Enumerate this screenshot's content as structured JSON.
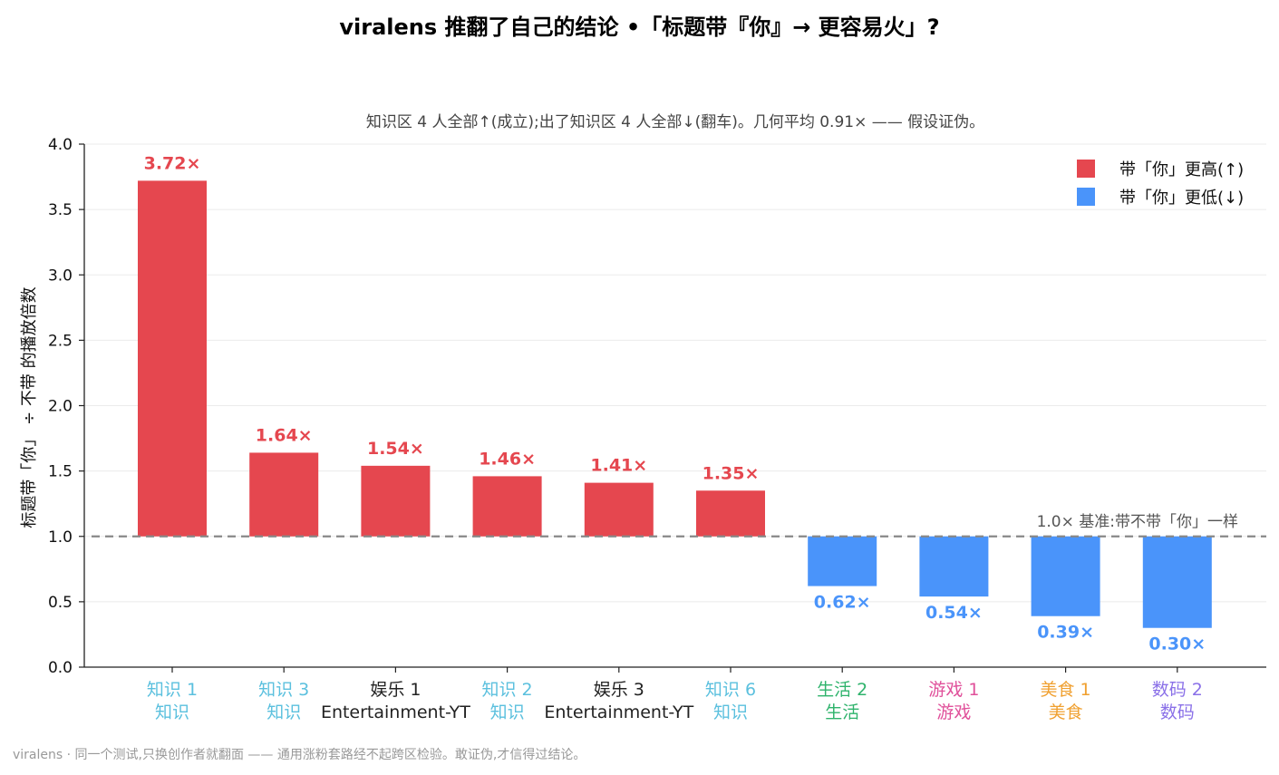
{
  "chart_data": {
    "type": "bar",
    "title": "viralens 推翻了自己的结论 •「标题带『你』→ 更容易火」?",
    "subtitle": "知识区 4 人全部↑(成立);出了知识区 4 人全部↓(翻车)。几何平均 0.91× —— 假设证伪。",
    "ylabel": "标题带「你」 ÷ 不带 的播放倍数",
    "ylim": [
      0,
      4.0
    ],
    "yticks": [
      "0.0",
      "0.5",
      "1.0",
      "1.5",
      "2.0",
      "2.5",
      "3.0",
      "3.5",
      "4.0"
    ],
    "baseline": 1.0,
    "baseline_label": "1.0× 基准:带不带「你」一样",
    "grid": "horizontal",
    "legend_position": "top-right",
    "legend": [
      {
        "label": "带「你」更高(↑)",
        "color": "#e5474f"
      },
      {
        "label": "带「你」更低(↓)",
        "color": "#4a94fa"
      }
    ],
    "categories": [
      {
        "name": "知识 1",
        "group": "知识",
        "name_color": "#5bc0de",
        "group_color": "#5bc0de"
      },
      {
        "name": "知识 3",
        "group": "知识",
        "name_color": "#5bc0de",
        "group_color": "#5bc0de"
      },
      {
        "name": "娱乐 1",
        "group": "Entertainment-YT",
        "name_color": "#222222",
        "group_color": "#222222"
      },
      {
        "name": "知识 2",
        "group": "知识",
        "name_color": "#5bc0de",
        "group_color": "#5bc0de"
      },
      {
        "name": "娱乐 3",
        "group": "Entertainment-YT",
        "name_color": "#222222",
        "group_color": "#222222"
      },
      {
        "name": "知识 6",
        "group": "知识",
        "name_color": "#5bc0de",
        "group_color": "#5bc0de"
      },
      {
        "name": "生活 2",
        "group": "生活",
        "name_color": "#2fb36c",
        "group_color": "#2fb36c"
      },
      {
        "name": "游戏 1",
        "group": "游戏",
        "name_color": "#e0509a",
        "group_color": "#e0509a"
      },
      {
        "name": "美食 1",
        "group": "美食",
        "name_color": "#f0a030",
        "group_color": "#f0a030"
      },
      {
        "name": "数码 2",
        "group": "数码",
        "name_color": "#8a70e8",
        "group_color": "#8a70e8"
      }
    ],
    "values": [
      3.72,
      1.64,
      1.54,
      1.46,
      1.41,
      1.35,
      0.62,
      0.54,
      0.39,
      0.3
    ],
    "value_labels": [
      "3.72×",
      "1.64×",
      "1.54×",
      "1.46×",
      "1.41×",
      "1.35×",
      "0.62×",
      "0.54×",
      "0.39×",
      "0.30×"
    ]
  },
  "footer": "viralens · 同一个测试,只换创作者就翻面 —— 通用涨粉套路经不起跨区检验。敢证伪,才信得过结论。"
}
